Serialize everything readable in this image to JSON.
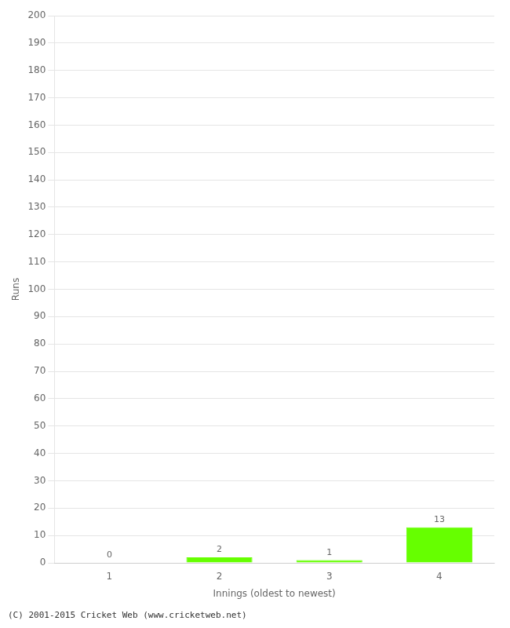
{
  "chart_data": {
    "type": "bar",
    "categories": [
      "1",
      "2",
      "3",
      "4"
    ],
    "values": [
      0,
      2,
      1,
      13
    ],
    "color": "#66ff00",
    "xlabel": "Innings (oldest to newest)",
    "ylabel": "Runs",
    "ylim": [
      0,
      200
    ],
    "yticks": [
      0,
      10,
      20,
      30,
      40,
      50,
      60,
      70,
      80,
      90,
      100,
      110,
      120,
      130,
      140,
      150,
      160,
      170,
      180,
      190,
      200
    ],
    "grid": true,
    "data_labels": true,
    "annotations": [
      "(C) 2001-2015 Cricket Web (www.cricketweb.net)"
    ]
  }
}
